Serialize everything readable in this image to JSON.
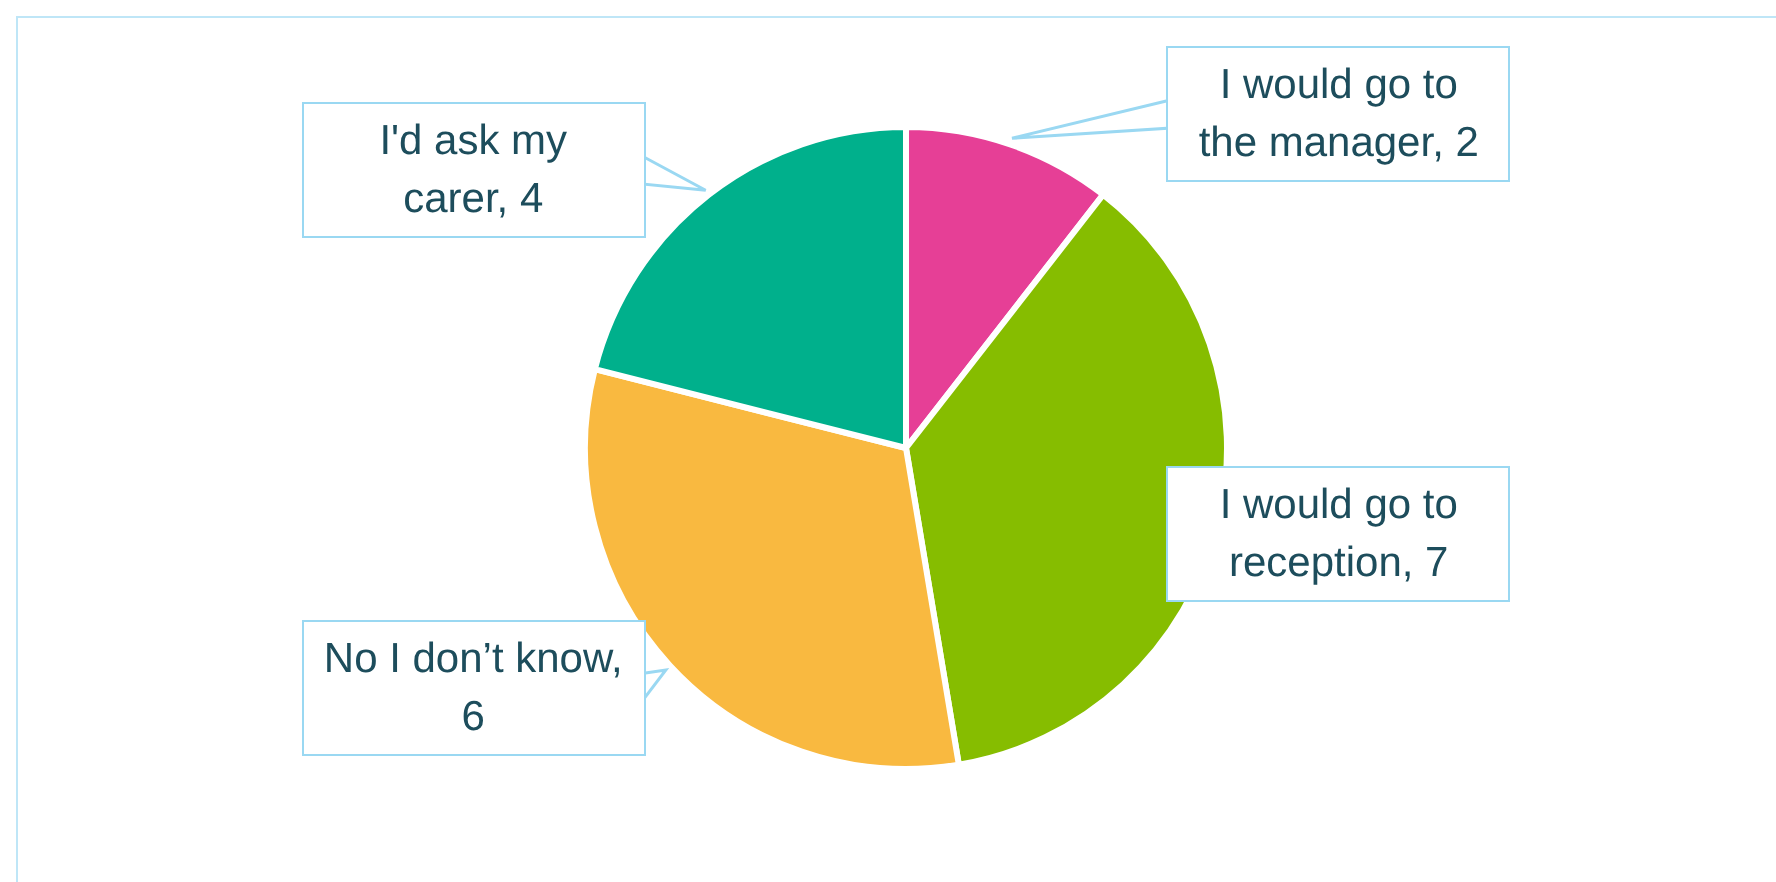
{
  "chart_data": {
    "type": "pie",
    "categories": [
      "I would go to the manager, 2",
      "I would go to reception, 7",
      "No I don’t know, 6",
      "I'd ask my carer, 4"
    ],
    "values": [
      2,
      7,
      6,
      4
    ],
    "colors": [
      "#e63f96",
      "#86bd00",
      "#f9b940",
      "#00b08c"
    ],
    "legend": false
  }
}
